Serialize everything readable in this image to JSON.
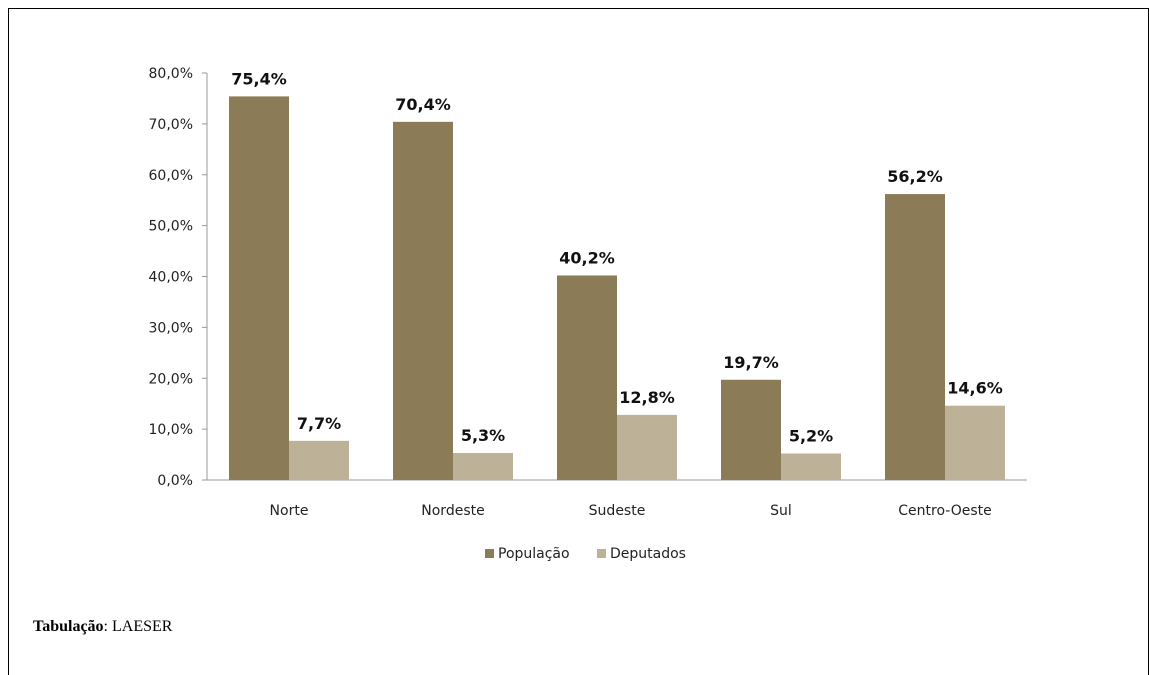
{
  "chart_data": {
    "type": "bar",
    "categories": [
      "Norte",
      "Nordeste",
      "Sudeste",
      "Sul",
      "Centro-Oeste"
    ],
    "series": [
      {
        "name": "População",
        "values": [
          75.4,
          70.4,
          40.2,
          19.7,
          56.2
        ],
        "color": "#8b7b56"
      },
      {
        "name": "Deputados",
        "values": [
          7.7,
          5.3,
          12.8,
          5.2,
          14.6
        ],
        "color": "#bdb197"
      }
    ],
    "data_labels": [
      [
        "75,4%",
        "70,4%",
        "40,2%",
        "19,7%",
        "56,2%"
      ],
      [
        "7,7%",
        "5,3%",
        "12,8%",
        "5,2%",
        "14,6%"
      ]
    ],
    "y_ticks": [
      "0,0%",
      "10,0%",
      "20,0%",
      "30,0%",
      "40,0%",
      "50,0%",
      "60,0%",
      "70,0%",
      "80,0%"
    ],
    "ylim": [
      0,
      80
    ],
    "grid": false,
    "legend_position": "bottom"
  },
  "source": {
    "label": "Tabulação",
    "text": ": LAESER"
  }
}
